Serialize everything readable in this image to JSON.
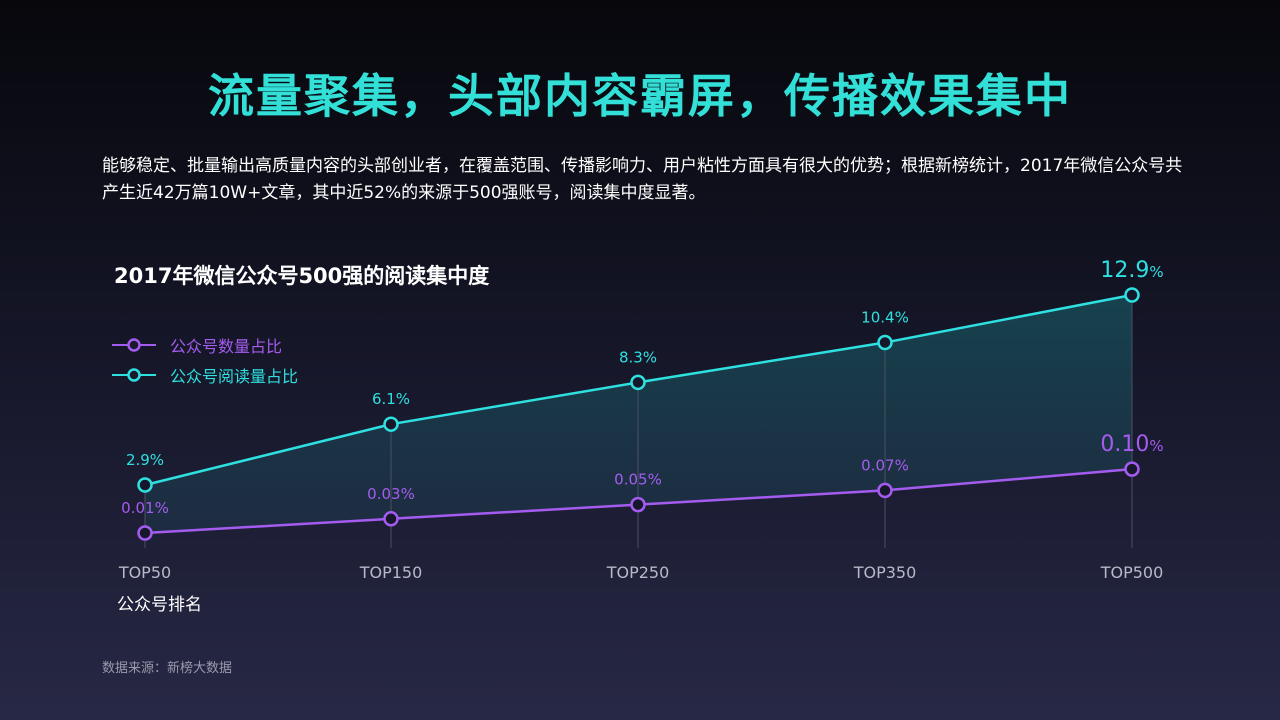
{
  "page": {
    "title": "流量聚集，头部内容霸屏，传播效果集中",
    "intro": "能够稳定、批量输出高质量内容的头部创业者，在覆盖范围、传播影响力、用户粘性方面具有很大的优势；根据新榜统计，2017年微信公众号共产生近42万篇10W+文章，其中近52%的来源于500强账号，阅读集中度显著。",
    "source": "数据来源：新榜大数据"
  },
  "chart_data": {
    "type": "line",
    "title": "2017年微信公众号500强的阅读集中度",
    "xlabel": "公众号排名",
    "ylabel": "",
    "categories": [
      "TOP50",
      "TOP150",
      "TOP250",
      "TOP350",
      "TOP500"
    ],
    "series": [
      {
        "name": "公众号数量占比",
        "color": "#a45cf0",
        "values": [
          0.01,
          0.03,
          0.05,
          0.07,
          0.1
        ],
        "labels": [
          "0.01%",
          "0.03%",
          "0.05%",
          "0.07%",
          "0.10%"
        ]
      },
      {
        "name": "公众号阅读量占比",
        "color": "#2ee0e0",
        "values": [
          2.9,
          6.1,
          8.3,
          10.4,
          12.9
        ],
        "labels": [
          "2.9%",
          "6.1%",
          "8.3%",
          "10.4%",
          "12.9%"
        ]
      }
    ],
    "grid": false,
    "legend": "top-left"
  }
}
